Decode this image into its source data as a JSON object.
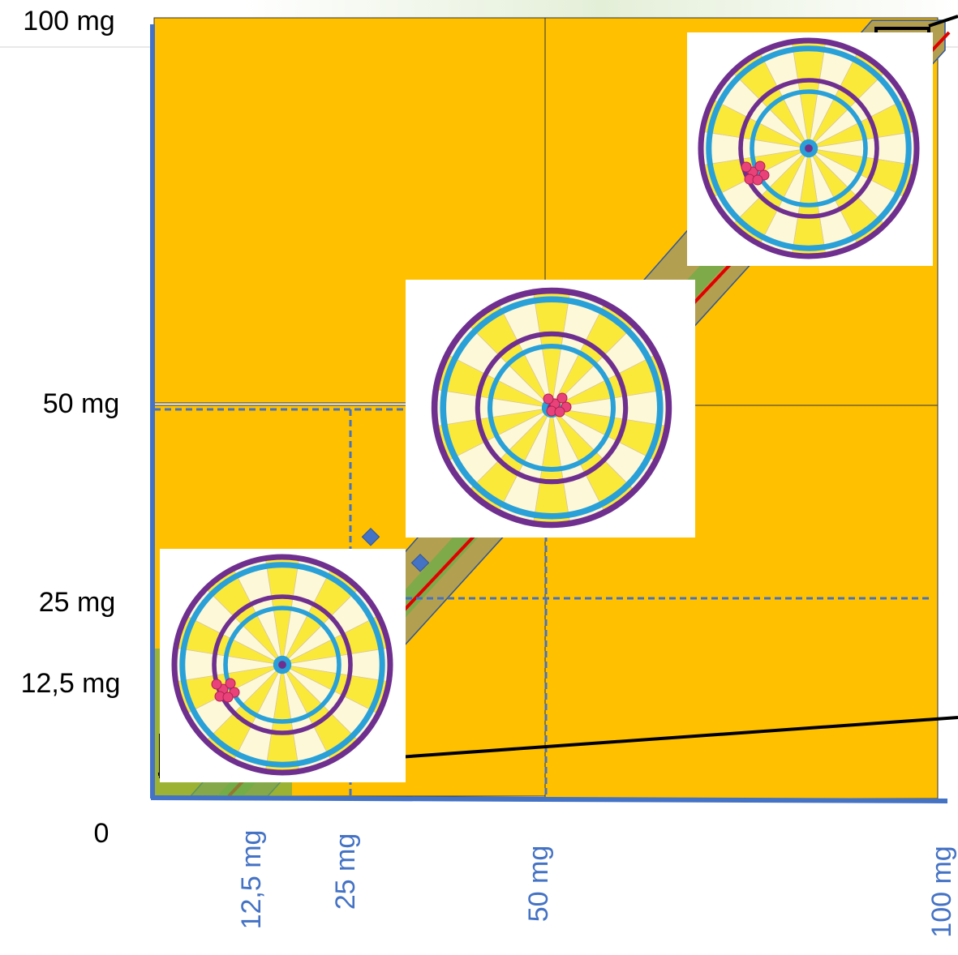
{
  "y_axis": {
    "labels": [
      "100 mg",
      "50 mg",
      "25 mg",
      "12,5 mg"
    ]
  },
  "origin": "0",
  "x_axis": {
    "labels": [
      "12,5 mg",
      "25 mg",
      "50 mg",
      "100 mg"
    ]
  }
}
